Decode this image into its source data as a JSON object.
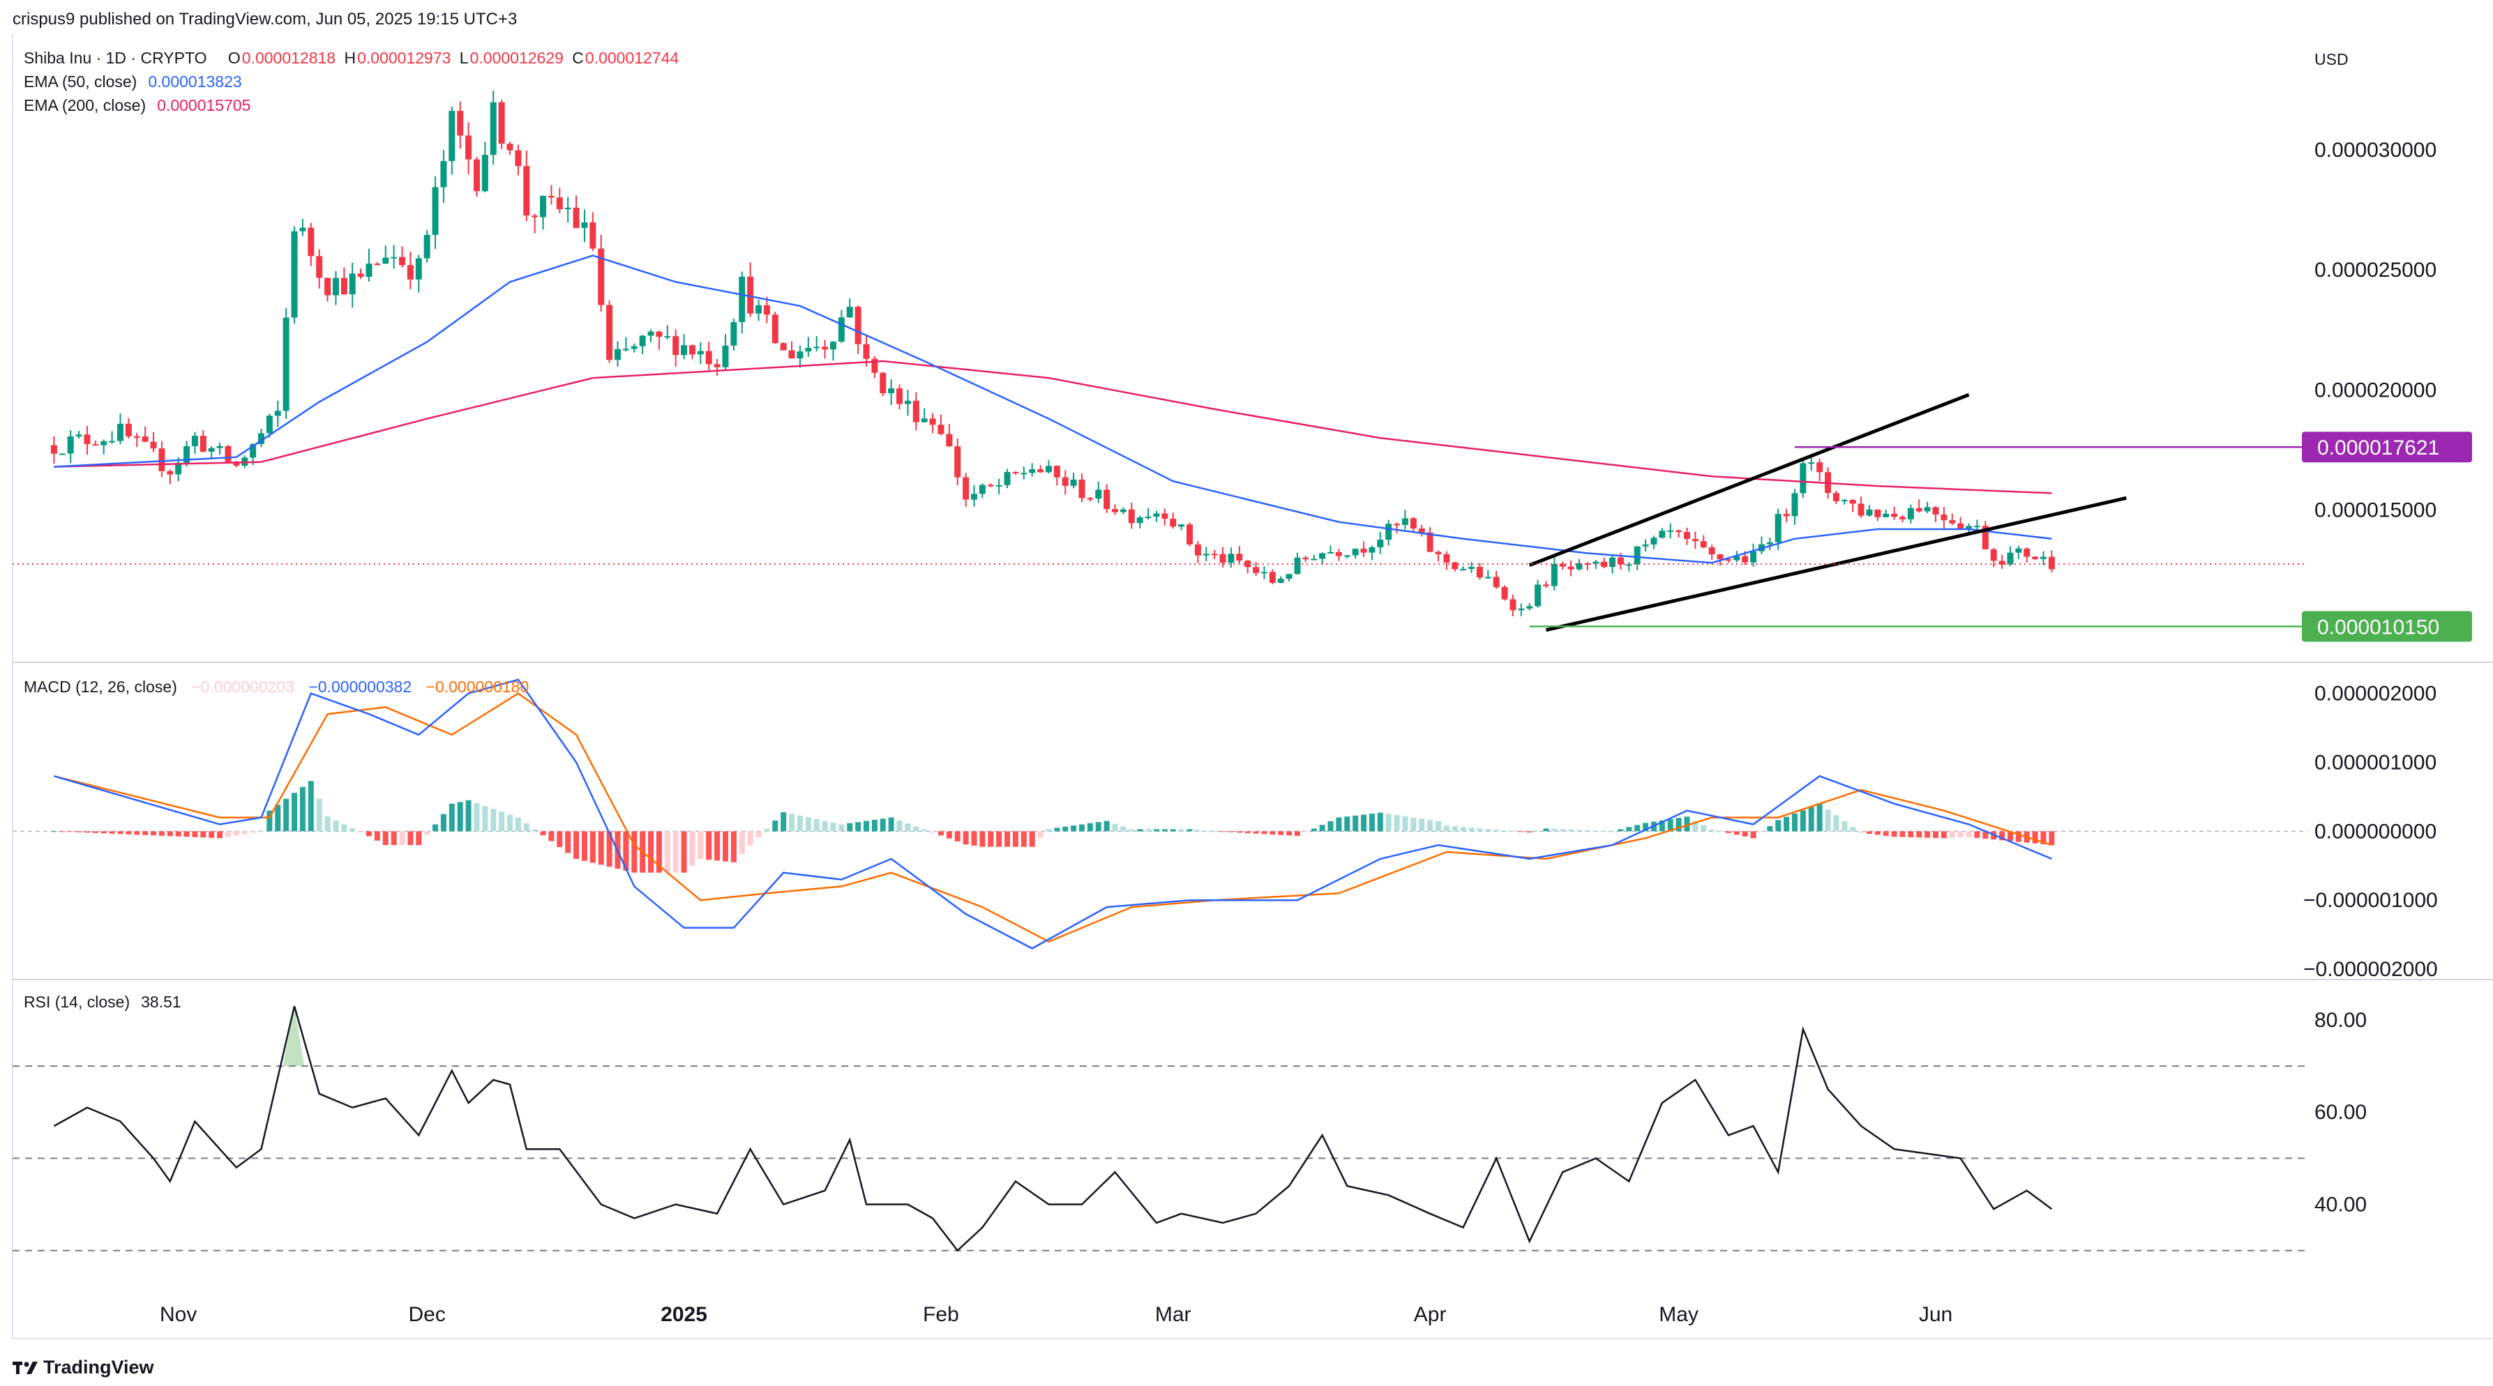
{
  "header": {
    "publisher": "crispus9 published on TradingView.com, Jun 05, 2025 19:15 UTC+3"
  },
  "currency_button": "USD",
  "legend": {
    "symbol": "Shiba Inu · 1D · CRYPTO",
    "ohlc": [
      {
        "label": "O",
        "value": "0.000012818"
      },
      {
        "label": "H",
        "value": "0.000012973"
      },
      {
        "label": "L",
        "value": "0.000012629"
      },
      {
        "label": "C",
        "value": "0.000012744"
      }
    ],
    "ema50_label": "EMA (50, close)",
    "ema50_value": "0.000013823",
    "ema200_label": "EMA (200, close)",
    "ema200_value": "0.000015705",
    "macd_label": "MACD (12, 26, close)",
    "macd_hist": "−0.000000203",
    "macd_line": "−0.000000382",
    "macd_signal": "−0.000000180",
    "rsi_label": "RSI (14, close)",
    "rsi_value": "38.51"
  },
  "footer": {
    "brand": "TradingView"
  },
  "colors": {
    "up": "#089981",
    "down": "#f23645",
    "ema50": "#2962ff",
    "ema200": "#e91e63",
    "resistance": "#9c27b0",
    "support": "#4caf50",
    "macd": "#2962ff",
    "signal": "#ff6d00",
    "histUp": "#26a69a",
    "histDown": "#ff5252"
  },
  "chart_data": [
    {
      "type": "candlestick",
      "title": "Shiba Inu · 1D · CRYPTO",
      "ylim": [
        8.8e-06,
        3.45e-05
      ],
      "y_ticks": [
        {
          "value": 3e-05,
          "label": "0.000030000"
        },
        {
          "value": 2.5e-05,
          "label": "0.000025000"
        },
        {
          "value": 2e-05,
          "label": "0.000020000"
        },
        {
          "value": 1.5e-05,
          "label": "0.000015000"
        }
      ],
      "x_labels": [
        {
          "day": 15,
          "label": "Nov"
        },
        {
          "day": 45,
          "label": "Dec"
        },
        {
          "day": 76,
          "label": "2025"
        },
        {
          "day": 107,
          "label": "Feb"
        },
        {
          "day": 135,
          "label": "Mar"
        },
        {
          "day": 166,
          "label": "Apr"
        },
        {
          "day": 196,
          "label": "May"
        },
        {
          "day": 227,
          "label": "Jun"
        }
      ],
      "x_range": [
        -5,
        270
      ],
      "anchors": [
        {
          "day": 0,
          "price": 1.77e-05
        },
        {
          "day": 8,
          "price": 1.82e-05
        },
        {
          "day": 14,
          "price": 1.67e-05
        },
        {
          "day": 17,
          "price": 1.8e-05
        },
        {
          "day": 22,
          "price": 1.68e-05
        },
        {
          "day": 27,
          "price": 1.9e-05
        },
        {
          "day": 29,
          "price": 2.7e-05
        },
        {
          "day": 33,
          "price": 2.45e-05
        },
        {
          "day": 37,
          "price": 2.45e-05
        },
        {
          "day": 40,
          "price": 2.58e-05
        },
        {
          "day": 44,
          "price": 2.5e-05
        },
        {
          "day": 48,
          "price": 3.1e-05
        },
        {
          "day": 51,
          "price": 2.9e-05
        },
        {
          "day": 53,
          "price": 3.13e-05
        },
        {
          "day": 55,
          "price": 3.05e-05
        },
        {
          "day": 57,
          "price": 2.75e-05
        },
        {
          "day": 62,
          "price": 2.75e-05
        },
        {
          "day": 65,
          "price": 2.6e-05
        },
        {
          "day": 67,
          "price": 2.1e-05
        },
        {
          "day": 71,
          "price": 2.2e-05
        },
        {
          "day": 75,
          "price": 2.2e-05
        },
        {
          "day": 80,
          "price": 2.13e-05
        },
        {
          "day": 83,
          "price": 2.43e-05
        },
        {
          "day": 88,
          "price": 2.15e-05
        },
        {
          "day": 93,
          "price": 2.2e-05
        },
        {
          "day": 96,
          "price": 2.35e-05
        },
        {
          "day": 98,
          "price": 2.1e-05
        },
        {
          "day": 102,
          "price": 1.95e-05
        },
        {
          "day": 107,
          "price": 1.85e-05
        },
        {
          "day": 110,
          "price": 1.55e-05
        },
        {
          "day": 114,
          "price": 1.6e-05
        },
        {
          "day": 118,
          "price": 1.68e-05
        },
        {
          "day": 124,
          "price": 1.58e-05
        },
        {
          "day": 130,
          "price": 1.48e-05
        },
        {
          "day": 134,
          "price": 1.5e-05
        },
        {
          "day": 138,
          "price": 1.32e-05
        },
        {
          "day": 143,
          "price": 1.28e-05
        },
        {
          "day": 147,
          "price": 1.2e-05
        },
        {
          "day": 152,
          "price": 1.32e-05
        },
        {
          "day": 158,
          "price": 1.35e-05
        },
        {
          "day": 163,
          "price": 1.45e-05
        },
        {
          "day": 167,
          "price": 1.3e-05
        },
        {
          "day": 172,
          "price": 1.23e-05
        },
        {
          "day": 177,
          "price": 1.08e-05
        },
        {
          "day": 181,
          "price": 1.25e-05
        },
        {
          "day": 185,
          "price": 1.25e-05
        },
        {
          "day": 190,
          "price": 1.3e-05
        },
        {
          "day": 195,
          "price": 1.4e-05
        },
        {
          "day": 200,
          "price": 1.3e-05
        },
        {
          "day": 205,
          "price": 1.3e-05
        },
        {
          "day": 209,
          "price": 1.5e-05
        },
        {
          "day": 211,
          "price": 1.72e-05
        },
        {
          "day": 214,
          "price": 1.58e-05
        },
        {
          "day": 218,
          "price": 1.5e-05
        },
        {
          "day": 222,
          "price": 1.48e-05
        },
        {
          "day": 225,
          "price": 1.52e-05
        },
        {
          "day": 228,
          "price": 1.48e-05
        },
        {
          "day": 232,
          "price": 1.42e-05
        },
        {
          "day": 234,
          "price": 1.3e-05
        },
        {
          "day": 238,
          "price": 1.32e-05
        },
        {
          "day": 241,
          "price": 1.28e-05
        }
      ],
      "ema50": [
        {
          "day": 0,
          "price": 1.68e-05
        },
        {
          "day": 22,
          "price": 1.72e-05
        },
        {
          "day": 32,
          "price": 1.95e-05
        },
        {
          "day": 45,
          "price": 2.2e-05
        },
        {
          "day": 55,
          "price": 2.45e-05
        },
        {
          "day": 65,
          "price": 2.56e-05
        },
        {
          "day": 75,
          "price": 2.45e-05
        },
        {
          "day": 90,
          "price": 2.35e-05
        },
        {
          "day": 105,
          "price": 2.12e-05
        },
        {
          "day": 120,
          "price": 1.88e-05
        },
        {
          "day": 135,
          "price": 1.62e-05
        },
        {
          "day": 155,
          "price": 1.45e-05
        },
        {
          "day": 170,
          "price": 1.38e-05
        },
        {
          "day": 185,
          "price": 1.32e-05
        },
        {
          "day": 200,
          "price": 1.28e-05
        },
        {
          "day": 210,
          "price": 1.38e-05
        },
        {
          "day": 220,
          "price": 1.42e-05
        },
        {
          "day": 231,
          "price": 1.42e-05
        },
        {
          "day": 241,
          "price": 1.38e-05
        }
      ],
      "ema200": [
        {
          "day": 0,
          "price": 1.68e-05
        },
        {
          "day": 25,
          "price": 1.7e-05
        },
        {
          "day": 45,
          "price": 1.88e-05
        },
        {
          "day": 65,
          "price": 2.05e-05
        },
        {
          "day": 80,
          "price": 2.08e-05
        },
        {
          "day": 100,
          "price": 2.12e-05
        },
        {
          "day": 120,
          "price": 2.05e-05
        },
        {
          "day": 140,
          "price": 1.92e-05
        },
        {
          "day": 160,
          "price": 1.8e-05
        },
        {
          "day": 180,
          "price": 1.72e-05
        },
        {
          "day": 200,
          "price": 1.64e-05
        },
        {
          "day": 220,
          "price": 1.6e-05
        },
        {
          "day": 241,
          "price": 1.57e-05
        }
      ],
      "trendlines": [
        {
          "from": {
            "day": 178,
            "price": 1.27e-05
          },
          "to": {
            "day": 231,
            "price": 1.98e-05
          }
        },
        {
          "from": {
            "day": 180,
            "price": 1e-05
          },
          "to": {
            "day": 250,
            "price": 1.55e-05
          }
        }
      ],
      "resistance": {
        "value": 1.7621e-05,
        "label": "0.000017621",
        "from_day": 210
      },
      "support": {
        "value": 1.015e-05,
        "label": "0.000010150",
        "from_day": 178
      },
      "last_price": 1.2744e-05
    },
    {
      "type": "line",
      "title": "MACD (12, 26, close)",
      "ylim": [
        -2.1e-06,
        2.4e-06
      ],
      "y_ticks": [
        {
          "value": 2e-06,
          "label": "0.000002000"
        },
        {
          "value": 1e-06,
          "label": "0.000001000"
        },
        {
          "value": 0,
          "label": "0.000000000"
        },
        {
          "value": -1e-06,
          "label": "−0.000001000"
        },
        {
          "value": -2e-06,
          "label": "−0.000002000"
        }
      ],
      "macd": [
        {
          "day": 0,
          "price": 8e-07
        },
        {
          "day": 20,
          "price": 1e-07
        },
        {
          "day": 25,
          "price": 2e-07
        },
        {
          "day": 31,
          "price": 2e-06
        },
        {
          "day": 38,
          "price": 1.7e-06
        },
        {
          "day": 44,
          "price": 1.4e-06
        },
        {
          "day": 50,
          "price": 2e-06
        },
        {
          "day": 56,
          "price": 2.2e-06
        },
        {
          "day": 63,
          "price": 1e-06
        },
        {
          "day": 70,
          "price": -8e-07
        },
        {
          "day": 76,
          "price": -1.4e-06
        },
        {
          "day": 82,
          "price": -1.4e-06
        },
        {
          "day": 88,
          "price": -6e-07
        },
        {
          "day": 95,
          "price": -7e-07
        },
        {
          "day": 101,
          "price": -4e-07
        },
        {
          "day": 110,
          "price": -1.2e-06
        },
        {
          "day": 118,
          "price": -1.7e-06
        },
        {
          "day": 127,
          "price": -1.1e-06
        },
        {
          "day": 137,
          "price": -1e-06
        },
        {
          "day": 150,
          "price": -1e-06
        },
        {
          "day": 160,
          "price": -4e-07
        },
        {
          "day": 167,
          "price": -2e-07
        },
        {
          "day": 178,
          "price": -4e-07
        },
        {
          "day": 188,
          "price": -2e-07
        },
        {
          "day": 197,
          "price": 3e-07
        },
        {
          "day": 205,
          "price": 1e-07
        },
        {
          "day": 213,
          "price": 8e-07
        },
        {
          "day": 222,
          "price": 4e-07
        },
        {
          "day": 231,
          "price": 1e-07
        },
        {
          "day": 241,
          "price": -4e-07
        }
      ],
      "signal": [
        {
          "day": 0,
          "price": 8e-07
        },
        {
          "day": 20,
          "price": 2e-07
        },
        {
          "day": 26,
          "price": 2e-07
        },
        {
          "day": 33,
          "price": 1.7e-06
        },
        {
          "day": 40,
          "price": 1.8e-06
        },
        {
          "day": 48,
          "price": 1.4e-06
        },
        {
          "day": 56,
          "price": 2e-06
        },
        {
          "day": 63,
          "price": 1.4e-06
        },
        {
          "day": 70,
          "price": -2e-07
        },
        {
          "day": 78,
          "price": -1e-06
        },
        {
          "day": 86,
          "price": -9e-07
        },
        {
          "day": 95,
          "price": -8e-07
        },
        {
          "day": 101,
          "price": -6e-07
        },
        {
          "day": 112,
          "price": -1.1e-06
        },
        {
          "day": 120,
          "price": -1.6e-06
        },
        {
          "day": 130,
          "price": -1.1e-06
        },
        {
          "day": 140,
          "price": -1e-06
        },
        {
          "day": 155,
          "price": -9e-07
        },
        {
          "day": 168,
          "price": -3e-07
        },
        {
          "day": 180,
          "price": -4e-07
        },
        {
          "day": 192,
          "price": -1e-07
        },
        {
          "day": 200,
          "price": 2e-07
        },
        {
          "day": 208,
          "price": 2e-07
        },
        {
          "day": 218,
          "price": 6e-07
        },
        {
          "day": 228,
          "price": 3e-07
        },
        {
          "day": 241,
          "price": -2e-07
        }
      ]
    },
    {
      "type": "line",
      "title": "RSI (14, close)",
      "ylim": [
        23,
        88
      ],
      "y_ticks": [
        {
          "value": 80,
          "label": "80.00"
        },
        {
          "value": 60,
          "label": "60.00"
        },
        {
          "value": 40,
          "label": "40.00"
        }
      ],
      "bands": [
        70,
        50,
        30
      ],
      "rsi": [
        {
          "day": 0,
          "price": 57
        },
        {
          "day": 4,
          "price": 61
        },
        {
          "day": 8,
          "price": 58
        },
        {
          "day": 12,
          "price": 50
        },
        {
          "day": 14,
          "price": 45
        },
        {
          "day": 17,
          "price": 58
        },
        {
          "day": 22,
          "price": 48
        },
        {
          "day": 25,
          "price": 52
        },
        {
          "day": 29,
          "price": 83
        },
        {
          "day": 32,
          "price": 64
        },
        {
          "day": 36,
          "price": 61
        },
        {
          "day": 40,
          "price": 63
        },
        {
          "day": 44,
          "price": 55
        },
        {
          "day": 48,
          "price": 69
        },
        {
          "day": 50,
          "price": 62
        },
        {
          "day": 53,
          "price": 67
        },
        {
          "day": 55,
          "price": 66
        },
        {
          "day": 57,
          "price": 52
        },
        {
          "day": 61,
          "price": 52
        },
        {
          "day": 66,
          "price": 40
        },
        {
          "day": 70,
          "price": 37
        },
        {
          "day": 75,
          "price": 40
        },
        {
          "day": 80,
          "price": 38
        },
        {
          "day": 84,
          "price": 52
        },
        {
          "day": 88,
          "price": 40
        },
        {
          "day": 93,
          "price": 43
        },
        {
          "day": 96,
          "price": 54
        },
        {
          "day": 98,
          "price": 40
        },
        {
          "day": 103,
          "price": 40
        },
        {
          "day": 106,
          "price": 37
        },
        {
          "day": 109,
          "price": 30
        },
        {
          "day": 112,
          "price": 35
        },
        {
          "day": 116,
          "price": 45
        },
        {
          "day": 120,
          "price": 40
        },
        {
          "day": 124,
          "price": 40
        },
        {
          "day": 128,
          "price": 47
        },
        {
          "day": 133,
          "price": 36
        },
        {
          "day": 136,
          "price": 38
        },
        {
          "day": 141,
          "price": 36
        },
        {
          "day": 145,
          "price": 38
        },
        {
          "day": 149,
          "price": 44
        },
        {
          "day": 153,
          "price": 55
        },
        {
          "day": 156,
          "price": 44
        },
        {
          "day": 161,
          "price": 42
        },
        {
          "day": 166,
          "price": 38
        },
        {
          "day": 170,
          "price": 35
        },
        {
          "day": 174,
          "price": 50
        },
        {
          "day": 178,
          "price": 32
        },
        {
          "day": 182,
          "price": 47
        },
        {
          "day": 186,
          "price": 50
        },
        {
          "day": 190,
          "price": 45
        },
        {
          "day": 194,
          "price": 62
        },
        {
          "day": 198,
          "price": 67
        },
        {
          "day": 202,
          "price": 55
        },
        {
          "day": 205,
          "price": 57
        },
        {
          "day": 208,
          "price": 47
        },
        {
          "day": 211,
          "price": 78
        },
        {
          "day": 214,
          "price": 65
        },
        {
          "day": 218,
          "price": 57
        },
        {
          "day": 222,
          "price": 52
        },
        {
          "day": 226,
          "price": 51
        },
        {
          "day": 230,
          "price": 50
        },
        {
          "day": 234,
          "price": 39
        },
        {
          "day": 238,
          "price": 43
        },
        {
          "day": 241,
          "price": 39
        }
      ]
    }
  ]
}
